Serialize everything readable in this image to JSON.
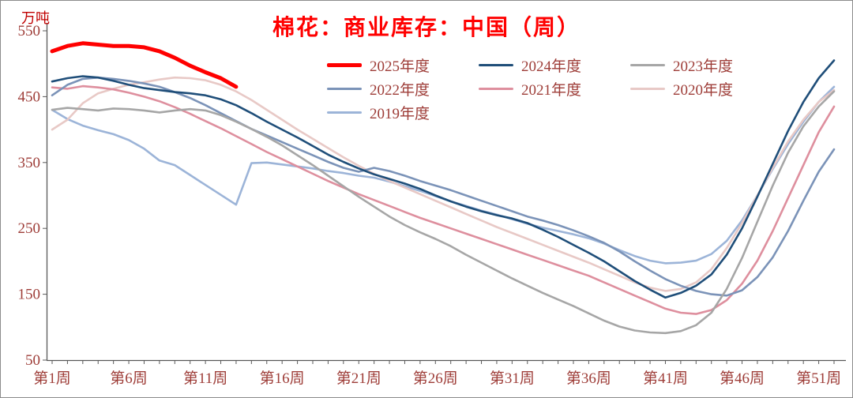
{
  "chart_data": {
    "type": "line",
    "title": "棉花：商业库存：中国（周）",
    "unit_label": "万吨",
    "xlabel": "",
    "ylabel": "万吨",
    "ylim": [
      50,
      550
    ],
    "yticks": [
      550,
      450,
      350,
      250,
      150,
      50
    ],
    "weeks": 52,
    "x_tick_weeks": [
      1,
      6,
      11,
      16,
      21,
      26,
      31,
      36,
      41,
      46,
      51
    ],
    "x_tick_labels": [
      "第1周",
      "第6周",
      "第11周",
      "第16周",
      "第21周",
      "第26周",
      "第31周",
      "第36周",
      "第41周",
      "第46周",
      "第51周"
    ],
    "grid": "off",
    "legend_position": "top-center-overlay",
    "legend_rows": [
      [
        "2025年度",
        "2024年度",
        "2023年度"
      ],
      [
        "2022年度",
        "2021年度",
        "2020年度"
      ],
      [
        "2019年度"
      ]
    ],
    "styles": {
      "title_color": "#ff0000",
      "unit_label_color": "#c00000",
      "axis_label_color": "#9e3d38",
      "axis_line_color": "#595959",
      "background": "#ffffff",
      "border": "#8c8c8c"
    },
    "series": [
      {
        "name": "2025年度",
        "color": "#ff0000",
        "width": 5,
        "values": [
          519,
          527,
          531,
          529,
          527,
          527,
          525,
          519,
          509,
          497,
          487,
          478,
          465
        ]
      },
      {
        "name": "2024年度",
        "color": "#1f4e79",
        "width": 2.6,
        "values": [
          473,
          478,
          481,
          479,
          474,
          468,
          463,
          460,
          457,
          455,
          452,
          446,
          437,
          425,
          412,
          400,
          388,
          375,
          362,
          351,
          341,
          332,
          325,
          318,
          310,
          300,
          291,
          283,
          276,
          270,
          265,
          258,
          248,
          237,
          225,
          213,
          200,
          185,
          170,
          157,
          145,
          152,
          163,
          180,
          210,
          250,
          298,
          348,
          398,
          442,
          478,
          505
        ]
      },
      {
        "name": "2023年度",
        "color": "#a6a6a6",
        "width": 2.6,
        "values": [
          430,
          433,
          431,
          429,
          432,
          431,
          429,
          426,
          429,
          431,
          429,
          422,
          412,
          401,
          389,
          376,
          361,
          346,
          330,
          314,
          298,
          283,
          268,
          255,
          244,
          234,
          223,
          210,
          198,
          186,
          174,
          163,
          152,
          142,
          132,
          121,
          110,
          101,
          95,
          92,
          91,
          94,
          103,
          122,
          158,
          205,
          260,
          315,
          365,
          405,
          435,
          458
        ]
      },
      {
        "name": "2022年度",
        "color": "#7b93b8",
        "width": 2.6,
        "values": [
          452,
          468,
          477,
          479,
          477,
          474,
          470,
          465,
          457,
          448,
          437,
          425,
          413,
          401,
          391,
          381,
          371,
          361,
          351,
          342,
          336,
          342,
          337,
          330,
          322,
          315,
          308,
          300,
          292,
          284,
          276,
          268,
          262,
          255,
          247,
          238,
          228,
          215,
          200,
          186,
          173,
          163,
          155,
          150,
          148,
          156,
          176,
          206,
          246,
          292,
          336,
          370
        ]
      },
      {
        "name": "2021年度",
        "color": "#de8f9e",
        "width": 2.6,
        "values": [
          464,
          462,
          466,
          464,
          461,
          456,
          450,
          443,
          434,
          424,
          413,
          402,
          390,
          378,
          366,
          355,
          344,
          333,
          322,
          312,
          302,
          293,
          284,
          275,
          266,
          258,
          250,
          242,
          234,
          226,
          218,
          210,
          202,
          194,
          186,
          178,
          168,
          158,
          148,
          138,
          128,
          122,
          120,
          126,
          141,
          166,
          201,
          246,
          296,
          346,
          396,
          435
        ]
      },
      {
        "name": "2020年度",
        "color": "#e8c9c6",
        "width": 2.6,
        "values": [
          400,
          415,
          440,
          455,
          462,
          468,
          472,
          476,
          479,
          478,
          475,
          468,
          458,
          445,
          430,
          415,
          400,
          386,
          372,
          358,
          345,
          333,
          322,
          312,
          302,
          292,
          282,
          272,
          262,
          252,
          243,
          234,
          225,
          216,
          207,
          198,
          188,
          178,
          168,
          160,
          155,
          158,
          168,
          188,
          220,
          258,
          300,
          342,
          382,
          415,
          442,
          460
        ]
      },
      {
        "name": "2019年度",
        "color": "#9cb4d8",
        "width": 2.6,
        "values": [
          430,
          416,
          406,
          399,
          393,
          384,
          371,
          353,
          346,
          331,
          316,
          301,
          286,
          349,
          350,
          347,
          344,
          341,
          337,
          334,
          330,
          327,
          321,
          314,
          307,
          299,
          291,
          284,
          277,
          271,
          264,
          257,
          251,
          246,
          241,
          235,
          227,
          217,
          208,
          201,
          197,
          198,
          201,
          211,
          231,
          262,
          300,
          340,
          378,
          412,
          442,
          465
        ]
      }
    ]
  }
}
